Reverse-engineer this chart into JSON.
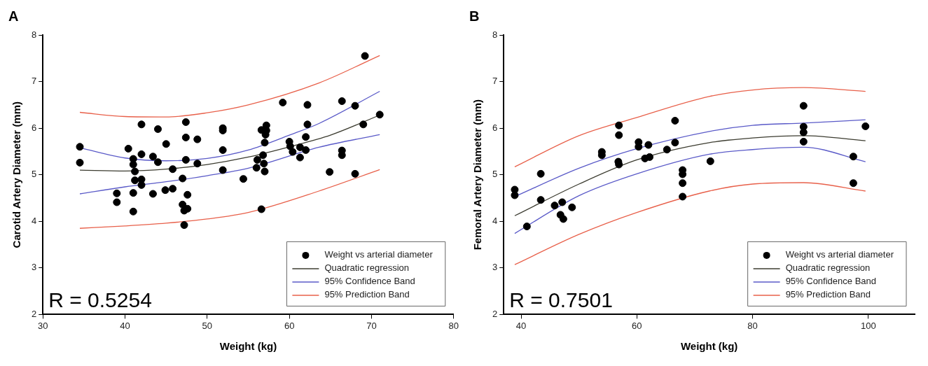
{
  "chart_data": [
    {
      "type": "scatter",
      "title": "A",
      "xlabel": "Weight (kg)",
      "ylabel": "Carotid Artery Diameter (mm)",
      "xlim": [
        30,
        80
      ],
      "xticks": [
        30,
        40,
        50,
        60,
        70,
        80
      ],
      "ylim": [
        2,
        8
      ],
      "yticks": [
        2,
        3,
        4,
        5,
        6,
        7,
        8
      ],
      "grid": false,
      "legend": "bottom right",
      "annotations": [
        "R = 0.5254"
      ],
      "series": [
        {
          "type": "scatter",
          "name": "Weight vs arterial diameter",
          "color": "#000000",
          "marker": "circle",
          "x": [
            34.5,
            34.5,
            42.0,
            44.0,
            47.4,
            51.9,
            51.9,
            47.4,
            48.8,
            45.0,
            40.4,
            42.0,
            43.4,
            44.0,
            41.0,
            41.0,
            41.2,
            47.4,
            48.8,
            45.8,
            51.9,
            51.9,
            54.4,
            47.0,
            41.2,
            42.0,
            42.0,
            39.0,
            41.0,
            43.4,
            44.9,
            45.8,
            47.6,
            39.0,
            47.0,
            47.6,
            47.2,
            41.0,
            47.2,
            69.2,
            59.2,
            62.2,
            66.4,
            68.0,
            71.0,
            69.0,
            62.2,
            57.2,
            56.6,
            57.2,
            57.1,
            62.0,
            57.0,
            60.0,
            60.1,
            60.4,
            61.3,
            62.0,
            61.3,
            66.4,
            66.4,
            56.8,
            56.1,
            56.9,
            56.0,
            57.0,
            64.9,
            68.0,
            56.6
          ],
          "values": [
            5.6,
            5.26,
            6.08,
            5.98,
            6.13,
            6.0,
            5.95,
            5.8,
            5.76,
            5.66,
            5.56,
            5.44,
            5.39,
            5.27,
            5.34,
            5.22,
            5.07,
            5.32,
            5.24,
            5.12,
            5.53,
            5.1,
            4.91,
            4.92,
            4.88,
            4.9,
            4.78,
            4.6,
            4.61,
            4.59,
            4.67,
            4.7,
            4.57,
            4.41,
            4.36,
            4.27,
            4.23,
            4.21,
            3.92,
            7.55,
            6.55,
            6.5,
            6.58,
            6.48,
            6.29,
            6.08,
            6.08,
            6.06,
            5.96,
            5.95,
            5.86,
            5.81,
            5.69,
            5.71,
            5.61,
            5.49,
            5.59,
            5.53,
            5.37,
            5.52,
            5.42,
            5.42,
            5.32,
            5.24,
            5.15,
            5.07,
            5.06,
            5.02,
            4.26
          ]
        },
        {
          "type": "line",
          "name": "Quadratic regression",
          "color": "#3c3c30",
          "x": [
            34.5,
            40,
            45,
            50,
            55,
            60,
            65,
            71
          ],
          "values": [
            5.1,
            5.08,
            5.12,
            5.22,
            5.38,
            5.6,
            5.85,
            6.28
          ]
        },
        {
          "type": "line",
          "name": "95% Confidence Band",
          "color": "#5a5ac8",
          "x": [
            34.5,
            40,
            45,
            50,
            55,
            60,
            63.6,
            71
          ],
          "values": [
            5.58,
            5.36,
            5.3,
            5.35,
            5.53,
            5.85,
            6.1,
            6.79
          ]
        },
        {
          "type": "line",
          "color": "#5a5ac8",
          "x": [
            34.5,
            40,
            45,
            50,
            55,
            63.6,
            71
          ],
          "values": [
            4.59,
            4.74,
            4.85,
            4.98,
            5.14,
            5.59,
            5.86
          ]
        },
        {
          "type": "line",
          "name": "95% Prediction Band",
          "color": "#e8604a",
          "x": [
            34.5,
            40,
            45,
            50,
            55,
            63.6,
            71
          ],
          "values": [
            6.34,
            6.25,
            6.24,
            6.33,
            6.5,
            6.97,
            7.56
          ]
        },
        {
          "type": "line",
          "color": "#e8604a",
          "x": [
            34.5,
            40,
            45,
            50,
            55,
            63.6,
            71
          ],
          "values": [
            3.85,
            3.9,
            3.96,
            4.05,
            4.19,
            4.65,
            5.11
          ]
        }
      ]
    },
    {
      "type": "scatter",
      "title": "B",
      "xlabel": "Weight (kg)",
      "ylabel": "Femoral Artery Diameter (mm)",
      "xlim": [
        37,
        108
      ],
      "xticks": [
        40,
        60,
        80,
        100
      ],
      "ylim": [
        2,
        8
      ],
      "yticks": [
        2,
        3,
        4,
        5,
        6,
        7,
        8
      ],
      "grid": false,
      "legend": "bottom right",
      "annotations": [
        "R = 0.7501"
      ],
      "series": [
        {
          "type": "scatter",
          "name": "Weight vs arterial diameter",
          "color": "#000000",
          "marker": "circle",
          "x": [
            38.9,
            38.9,
            41.0,
            43.4,
            43.4,
            45.8,
            47.1,
            46.8,
            47.3,
            48.8,
            53.95,
            53.95,
            56.9,
            56.9,
            56.8,
            56.9,
            60.3,
            60.3,
            62.0,
            61.4,
            62.2,
            65.2,
            66.6,
            66.6,
            67.9,
            67.9,
            67.9,
            67.9,
            72.7,
            88.8,
            88.8,
            88.8,
            88.8,
            99.5,
            97.4,
            97.4
          ],
          "values": [
            4.68,
            4.56,
            3.89,
            5.02,
            4.46,
            4.34,
            4.41,
            4.14,
            4.05,
            4.3,
            5.49,
            5.42,
            6.06,
            5.85,
            5.28,
            5.22,
            5.7,
            5.6,
            5.64,
            5.35,
            5.38,
            5.54,
            6.16,
            5.69,
            5.1,
            5.01,
            4.82,
            4.53,
            5.29,
            6.48,
            6.03,
            5.91,
            5.71,
            6.04,
            5.39,
            4.82
          ]
        },
        {
          "type": "line",
          "name": "Quadratic regression",
          "color": "#3c3c30",
          "x": [
            38.9,
            50,
            60,
            72.5,
            80,
            88.8,
            99.5
          ],
          "values": [
            4.12,
            4.8,
            5.32,
            5.69,
            5.79,
            5.84,
            5.73
          ]
        },
        {
          "type": "line",
          "name": "95% Confidence Band",
          "color": "#5a5ac8",
          "x": [
            38.9,
            50,
            60,
            72.5,
            80,
            88.8,
            99.5
          ],
          "values": [
            4.53,
            5.14,
            5.56,
            5.93,
            6.06,
            6.11,
            6.18
          ]
        },
        {
          "type": "line",
          "color": "#5a5ac8",
          "x": [
            38.9,
            50,
            60,
            72.5,
            80,
            88.8,
            99.5
          ],
          "values": [
            3.74,
            4.55,
            5.02,
            5.44,
            5.54,
            5.59,
            5.28
          ]
        },
        {
          "type": "line",
          "name": "95% Prediction Band",
          "color": "#e8604a",
          "x": [
            38.9,
            50,
            60,
            72.5,
            80,
            88.8,
            99.5
          ],
          "values": [
            5.17,
            5.84,
            6.23,
            6.68,
            6.82,
            6.87,
            6.79
          ]
        },
        {
          "type": "line",
          "color": "#e8604a",
          "x": [
            38.9,
            50,
            60,
            72.5,
            80,
            88.8,
            99.5
          ],
          "values": [
            3.07,
            3.72,
            4.19,
            4.65,
            4.8,
            4.83,
            4.65
          ]
        }
      ]
    }
  ]
}
